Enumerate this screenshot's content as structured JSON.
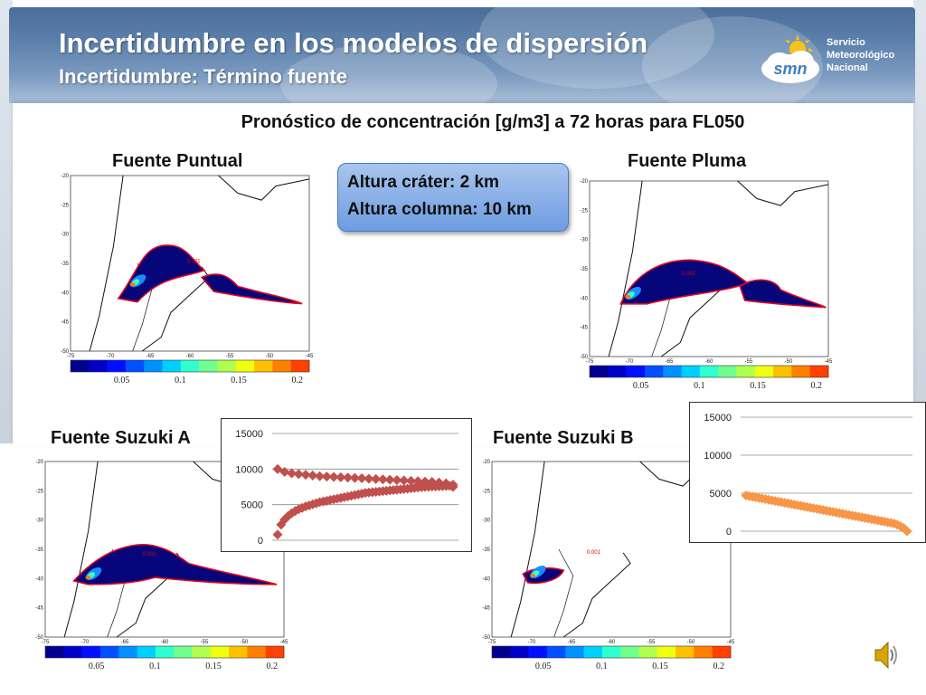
{
  "header": {
    "title": "Incertidumbre en los modelos de dispersión",
    "subtitle": "Incertidumbre: Término fuente",
    "logo": {
      "abbr": "smn",
      "line1": "Servicio",
      "line2": "Meteorológico",
      "line3": "Nacional",
      "icon": "sun-cloud-logo-icon"
    }
  },
  "main_title": "Pronóstico de concentración [g/m3] a 72 horas para FL050",
  "info": {
    "line1": "Altura cráter: 2 km",
    "line2": "Altura columna: 10 km"
  },
  "maps": {
    "puntual": {
      "label": "Fuente Puntual"
    },
    "pluma": {
      "label": "Fuente Pluma"
    },
    "suzuki_a": {
      "label": "Fuente Suzuki A"
    },
    "suzuki_b": {
      "label": "Fuente Suzuki B"
    },
    "yticks": [
      "-20",
      "-25",
      "-30",
      "-35",
      "-40",
      "-45",
      "-50"
    ],
    "xticks": [
      "-75",
      "-70",
      "-65",
      "-60",
      "-55",
      "-50",
      "-45"
    ],
    "colorbar_ticks": [
      "0.05",
      "0.1",
      "0.15",
      "0.2"
    ],
    "colorbar_colors": [
      "#00008f",
      "#0000c8",
      "#0010ff",
      "#0050ff",
      "#0090ff",
      "#00d0ff",
      "#30ffcf",
      "#70ff8f",
      "#b0ff4f",
      "#f0ff10",
      "#ffc000",
      "#ff8000",
      "#ff4000"
    ],
    "contour_label": "0.001"
  },
  "chart_data": [
    {
      "type": "scatter",
      "name_ref": "suzuki_a_profile",
      "ylim": [
        0,
        15000
      ],
      "yticks": [
        "15000",
        "10000",
        "5000",
        "0"
      ],
      "x": [
        0.0,
        0.02,
        0.04,
        0.06,
        0.08,
        0.1,
        0.12,
        0.14,
        0.16,
        0.18,
        0.2,
        0.22,
        0.24,
        0.26,
        0.28,
        0.3,
        0.32,
        0.34,
        0.36,
        0.38,
        0.4,
        0.42,
        0.44,
        0.46,
        0.48,
        0.5,
        0.52,
        0.54,
        0.56,
        0.58,
        0.6,
        0.62,
        0.64,
        0.66,
        0.68,
        0.7,
        0.72,
        0.74,
        0.76,
        0.78,
        0.8,
        0.82,
        0.84,
        0.86,
        0.88,
        0.9,
        0.92,
        0.94,
        0.96,
        0.98,
        1.0,
        0.0,
        0.04,
        0.08,
        0.12,
        0.16,
        0.2,
        0.24,
        0.28,
        0.32,
        0.36,
        0.4,
        0.44,
        0.48,
        0.52,
        0.56,
        0.6,
        0.64,
        0.68,
        0.72,
        0.76,
        0.8,
        0.84,
        0.88,
        0.92,
        0.96,
        1.0
      ],
      "y": [
        800,
        2200,
        2900,
        3400,
        3800,
        4100,
        4350,
        4550,
        4750,
        4900,
        5050,
        5200,
        5350,
        5450,
        5550,
        5650,
        5750,
        5850,
        5950,
        6050,
        6150,
        6250,
        6350,
        6450,
        6550,
        6650,
        6700,
        6750,
        6800,
        6850,
        6900,
        6950,
        7000,
        7050,
        7100,
        7150,
        7200,
        7250,
        7300,
        7350,
        7400,
        7450,
        7500,
        7520,
        7540,
        7560,
        7580,
        7600,
        7620,
        7640,
        7500,
        10000,
        9600,
        9400,
        9300,
        9200,
        9100,
        9000,
        8950,
        8900,
        8850,
        8800,
        8750,
        8700,
        8650,
        8600,
        8550,
        8500,
        8450,
        8400,
        8350,
        8300,
        8250,
        8200,
        8100,
        8000,
        7800
      ]
    },
    {
      "type": "scatter",
      "name_ref": "suzuki_b_profile",
      "ylim": [
        0,
        15000
      ],
      "yticks": [
        "15000",
        "10000",
        "5000",
        "0"
      ],
      "x": [
        0.0,
        0.02,
        0.04,
        0.06,
        0.08,
        0.1,
        0.12,
        0.14,
        0.16,
        0.18,
        0.2,
        0.22,
        0.24,
        0.26,
        0.28,
        0.3,
        0.32,
        0.34,
        0.36,
        0.38,
        0.4,
        0.42,
        0.44,
        0.46,
        0.48,
        0.5,
        0.52,
        0.54,
        0.56,
        0.58,
        0.6,
        0.62,
        0.64,
        0.66,
        0.68,
        0.7,
        0.72,
        0.74,
        0.76,
        0.78,
        0.8,
        0.82,
        0.84,
        0.86,
        0.88,
        0.9,
        0.92,
        0.94,
        0.96,
        0.98,
        1.0
      ],
      "y": [
        4700,
        4620,
        4540,
        4460,
        4380,
        4300,
        4220,
        4140,
        4060,
        3980,
        3900,
        3820,
        3740,
        3660,
        3580,
        3500,
        3420,
        3340,
        3260,
        3180,
        3100,
        3020,
        2940,
        2860,
        2780,
        2700,
        2620,
        2540,
        2460,
        2380,
        2300,
        2220,
        2140,
        2060,
        1980,
        1900,
        1820,
        1740,
        1660,
        1580,
        1500,
        1420,
        1340,
        1260,
        1180,
        1100,
        1000,
        850,
        650,
        400,
        0
      ]
    }
  ]
}
